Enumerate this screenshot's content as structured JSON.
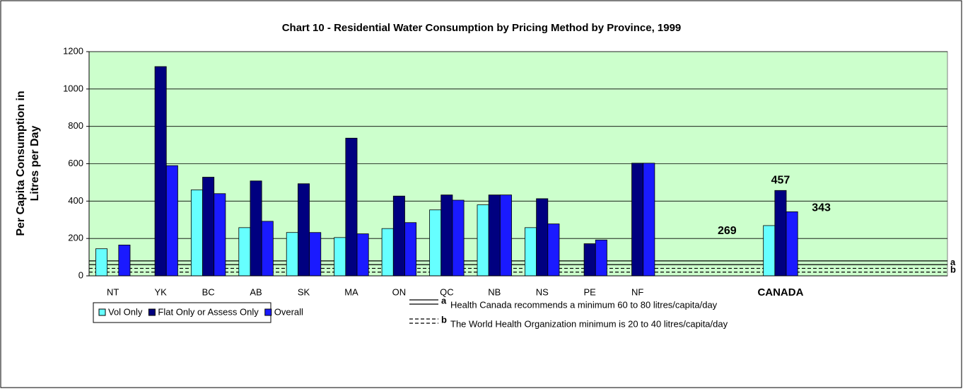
{
  "chart_data": {
    "type": "bar",
    "title": "Chart 10 - Residential Water Consumption by Pricing Method by Province, 1999",
    "ylabel": [
      "Per Capita Consumption in",
      "Litres per Day"
    ],
    "categories": [
      "NT",
      "YK",
      "BC",
      "AB",
      "SK",
      "MA",
      "ON",
      "QC",
      "NB",
      "NS",
      "PE",
      "NF",
      null,
      null,
      "CANADA",
      null,
      null,
      null
    ],
    "series": [
      {
        "name": "Vol Only",
        "color": "#66ffff",
        "values": [
          145,
          null,
          460,
          258,
          232,
          205,
          253,
          353,
          380,
          258,
          null,
          null,
          null,
          null,
          269,
          null,
          null,
          null
        ],
        "value_labels": [
          null,
          null,
          null,
          null,
          null,
          null,
          null,
          null,
          null,
          null,
          null,
          null,
          null,
          null,
          "269",
          null,
          null,
          null
        ]
      },
      {
        "name": "Flat Only or Assess Only",
        "color": "#000080",
        "values": [
          null,
          1120,
          528,
          508,
          493,
          737,
          427,
          433,
          433,
          413,
          172,
          603,
          null,
          null,
          457,
          null,
          null,
          null
        ],
        "value_labels": [
          null,
          null,
          null,
          null,
          null,
          null,
          null,
          null,
          null,
          null,
          null,
          null,
          null,
          null,
          "457",
          null,
          null,
          null
        ]
      },
      {
        "name": "Overall",
        "color": "#1a1aff",
        "values": [
          165,
          590,
          440,
          292,
          232,
          225,
          285,
          405,
          433,
          278,
          192,
          603,
          null,
          null,
          343,
          null,
          null,
          null
        ],
        "value_labels": [
          null,
          null,
          null,
          null,
          null,
          null,
          null,
          null,
          null,
          null,
          null,
          null,
          null,
          null,
          "343",
          null,
          null,
          null
        ]
      }
    ],
    "ylim": [
      0,
      1200
    ],
    "yticks": [
      0,
      200,
      400,
      600,
      800,
      1000,
      1200
    ],
    "grid": true,
    "reference_lines": [
      {
        "key": "a",
        "values": [
          60,
          80
        ],
        "dashed": false,
        "text": "Health Canada recommends a minimum 60 to 80 litres/capita/day"
      },
      {
        "key": "b",
        "values": [
          20,
          40
        ],
        "dashed": true,
        "text": "The World Health Organization minimum is 20 to 40 litres/capita/day"
      }
    ]
  }
}
